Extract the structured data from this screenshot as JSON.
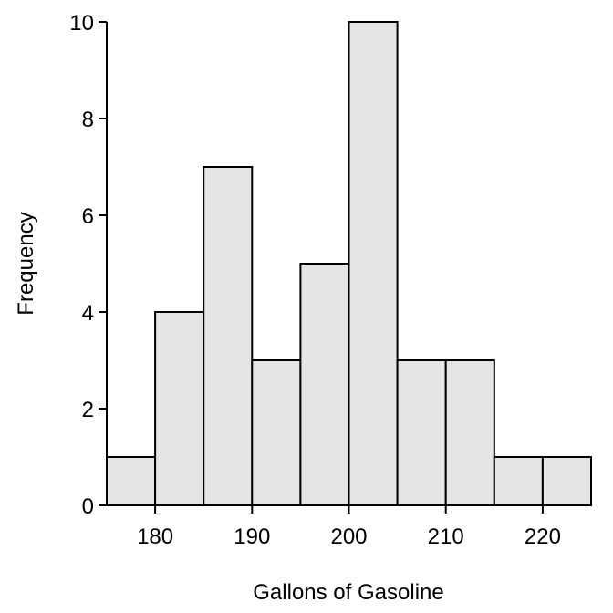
{
  "chart_data": {
    "type": "bar",
    "title": "",
    "xlabel": "Gallons of Gasoline",
    "ylabel": "Frequency",
    "bins": [
      {
        "start": 175,
        "end": 180,
        "count": 1
      },
      {
        "start": 180,
        "end": 185,
        "count": 4
      },
      {
        "start": 185,
        "end": 190,
        "count": 7
      },
      {
        "start": 190,
        "end": 195,
        "count": 3
      },
      {
        "start": 195,
        "end": 200,
        "count": 5
      },
      {
        "start": 200,
        "end": 205,
        "count": 10
      },
      {
        "start": 205,
        "end": 210,
        "count": 3
      },
      {
        "start": 210,
        "end": 215,
        "count": 3
      },
      {
        "start": 215,
        "end": 220,
        "count": 1
      },
      {
        "start": 220,
        "end": 225,
        "count": 1
      }
    ],
    "xlim": [
      175,
      225
    ],
    "ylim": [
      0,
      10
    ],
    "xticks": [
      "180",
      "190",
      "200",
      "210",
      "220"
    ],
    "yticks": [
      "0",
      "2",
      "4",
      "6",
      "8",
      "10"
    ],
    "grid": false,
    "bar_fill": "#e5e5e5",
    "bar_stroke": "#000000"
  }
}
